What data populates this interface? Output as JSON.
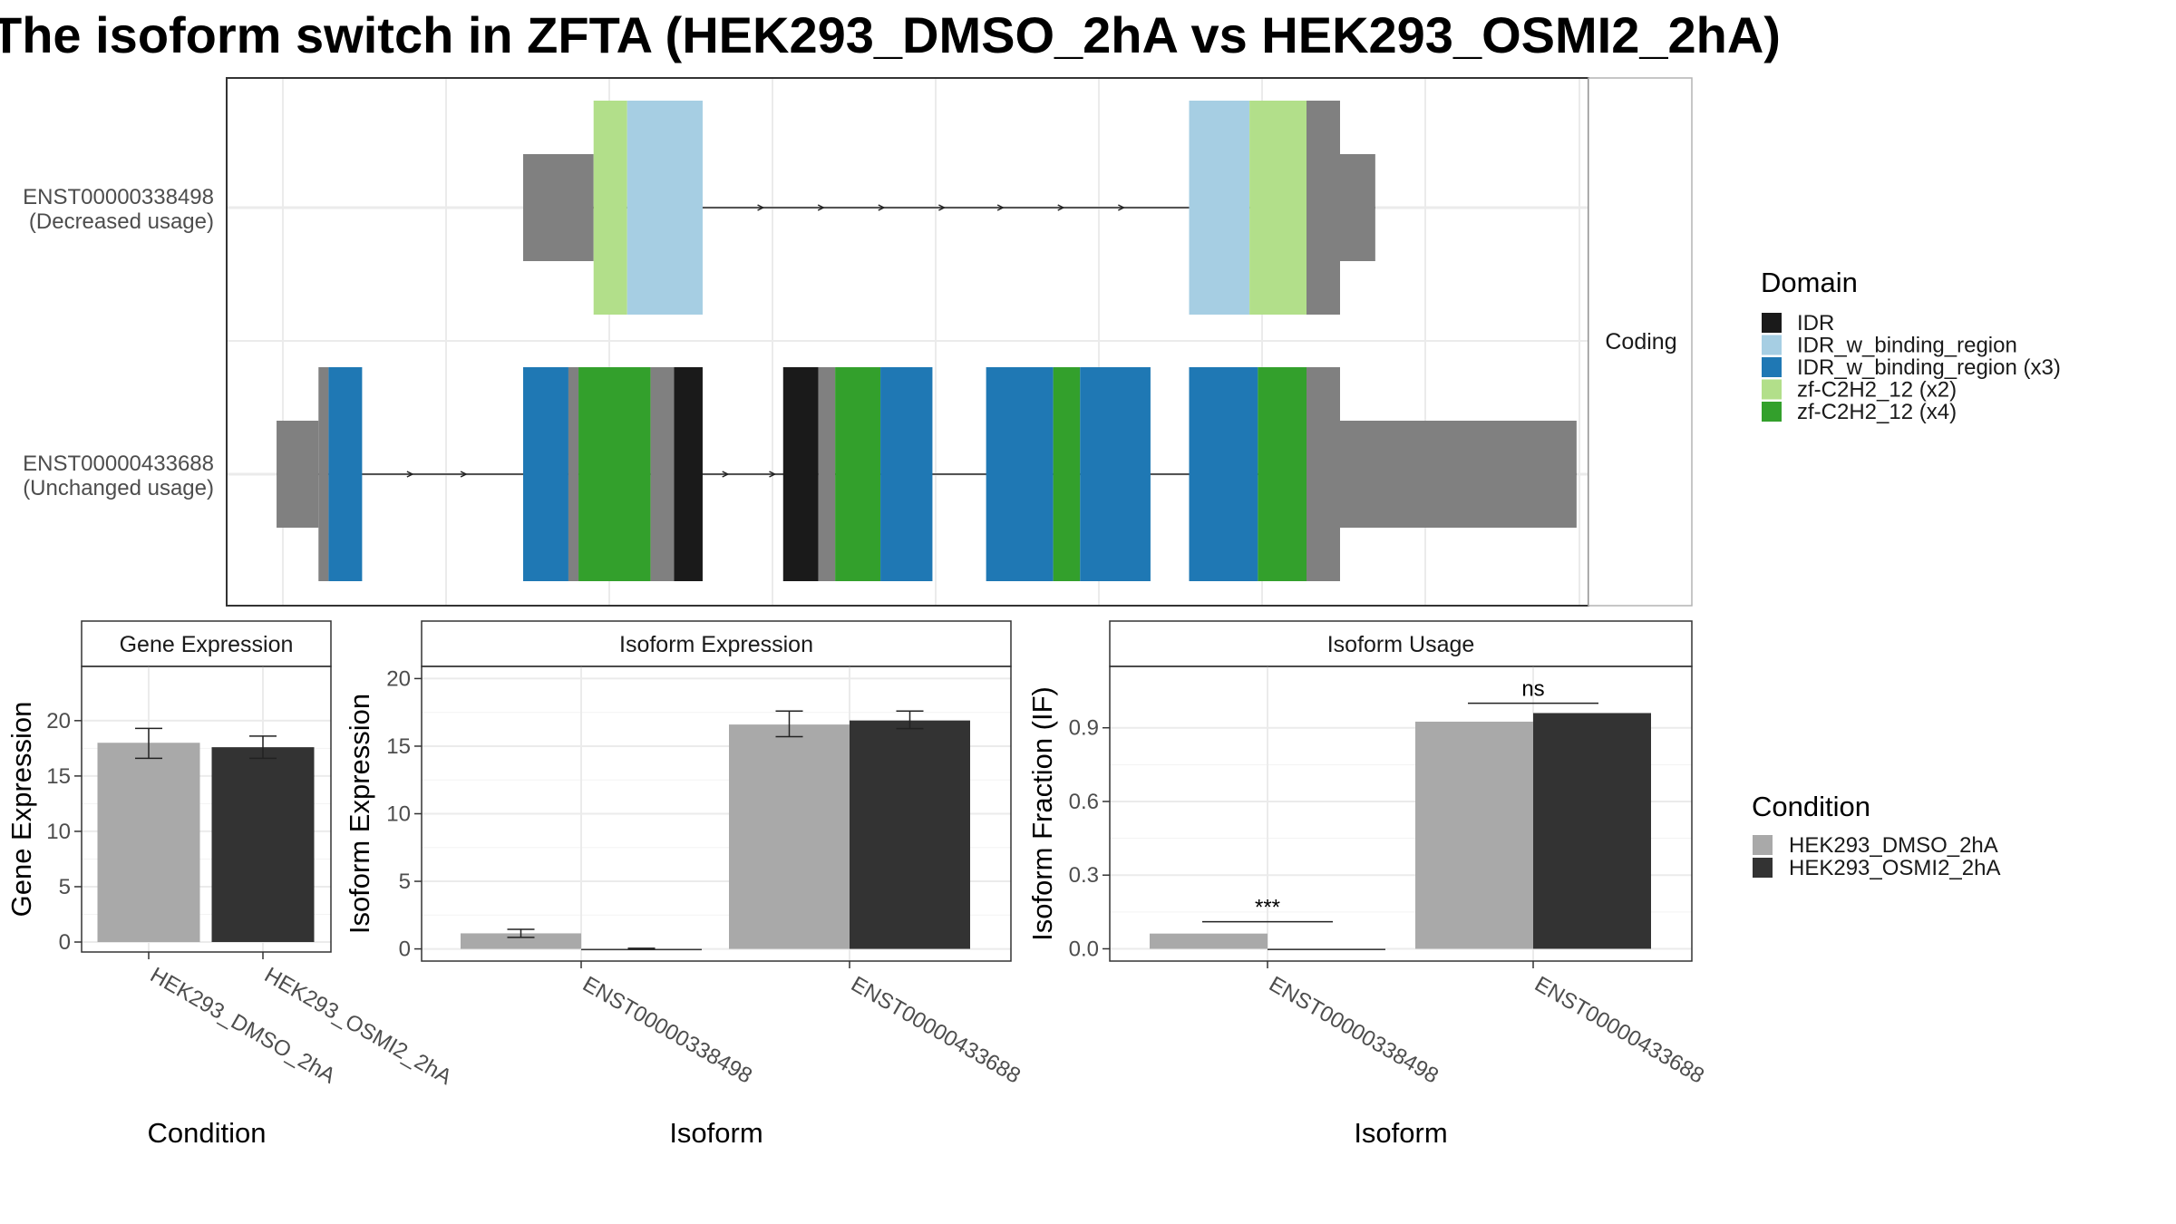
{
  "title": "The isoform switch in ZFTA (HEK293_DMSO_2hA vs HEK293_OSMI2_2hA)",
  "colors": {
    "IDR": "#1a1a1a",
    "IDR_w_binding_region": "#a6cee3",
    "IDR_w_binding_region (x3)": "#1f78b4",
    "zf-C2H2_12 (x2)": "#b2df8a",
    "zf-C2H2_12 (x4)": "#33a02c",
    "non_domain": "#808080",
    "HEK293_DMSO_2hA": "#a9a9a9",
    "HEK293_OSMI2_2hA": "#333333"
  },
  "structure": {
    "strip_label": "Coding",
    "isoforms": [
      {
        "id": "ENST00000338498",
        "usage": "(Decreased usage)",
        "exons": [
          {
            "start": 0.0,
            "end": 4.2,
            "height": "utr",
            "segments": [
              {
                "from": 0.0,
                "to": 4.2,
                "domain": "non_domain"
              }
            ]
          },
          {
            "start": 4.2,
            "end": 10.7,
            "height": "cds",
            "segments": [
              {
                "from": 4.2,
                "to": 6.2,
                "domain": "zf-C2H2_12 (x2)"
              },
              {
                "from": 6.2,
                "to": 10.7,
                "domain": "IDR_w_binding_region"
              }
            ]
          },
          {
            "start": 39.7,
            "end": 48.7,
            "height": "cds",
            "segments": [
              {
                "from": 39.7,
                "to": 43.3,
                "domain": "IDR_w_binding_region"
              },
              {
                "from": 43.3,
                "to": 46.7,
                "domain": "zf-C2H2_12 (x2)"
              },
              {
                "from": 46.7,
                "to": 48.7,
                "domain": "non_domain"
              }
            ]
          },
          {
            "start": 48.7,
            "end": 50.8,
            "height": "utr",
            "segments": [
              {
                "from": 48.7,
                "to": 50.8,
                "domain": "non_domain"
              }
            ]
          }
        ],
        "intron_arrows": [
          14.3,
          17.9,
          21.5,
          25.1,
          28.6,
          32.2,
          35.8
        ]
      },
      {
        "id": "ENST00000433688",
        "usage": "(Unchanged usage)",
        "exons": [
          {
            "start": -14.7,
            "end": -12.2,
            "height": "utr",
            "segments": [
              {
                "from": -14.7,
                "to": -12.2,
                "domain": "non_domain"
              }
            ]
          },
          {
            "start": -12.2,
            "end": -9.6,
            "height": "cds",
            "segments": [
              {
                "from": -12.2,
                "to": -11.6,
                "domain": "non_domain"
              },
              {
                "from": -11.6,
                "to": -9.6,
                "domain": "IDR_w_binding_region (x3)"
              }
            ]
          },
          {
            "start": 0.0,
            "end": 10.7,
            "height": "cds",
            "segments": [
              {
                "from": 0.0,
                "to": 2.7,
                "domain": "IDR_w_binding_region (x3)"
              },
              {
                "from": 2.7,
                "to": 3.3,
                "domain": "non_domain"
              },
              {
                "from": 3.3,
                "to": 7.6,
                "domain": "zf-C2H2_12 (x4)"
              },
              {
                "from": 7.6,
                "to": 9.0,
                "domain": "non_domain"
              },
              {
                "from": 9.0,
                "to": 10.7,
                "domain": "IDR"
              }
            ]
          },
          {
            "start": 15.5,
            "end": 24.4,
            "height": "cds",
            "segments": [
              {
                "from": 15.5,
                "to": 17.6,
                "domain": "IDR"
              },
              {
                "from": 17.6,
                "to": 18.6,
                "domain": "non_domain"
              },
              {
                "from": 18.6,
                "to": 21.3,
                "domain": "zf-C2H2_12 (x4)"
              },
              {
                "from": 21.3,
                "to": 24.4,
                "domain": "IDR_w_binding_region (x3)"
              }
            ]
          },
          {
            "start": 27.6,
            "end": 37.4,
            "height": "cds",
            "segments": [
              {
                "from": 27.6,
                "to": 31.6,
                "domain": "IDR_w_binding_region (x3)"
              },
              {
                "from": 31.6,
                "to": 33.2,
                "domain": "zf-C2H2_12 (x4)"
              },
              {
                "from": 33.2,
                "to": 37.4,
                "domain": "IDR_w_binding_region (x3)"
              }
            ]
          },
          {
            "start": 39.7,
            "end": 48.7,
            "height": "cds",
            "segments": [
              {
                "from": 39.7,
                "to": 43.8,
                "domain": "IDR_w_binding_region (x3)"
              },
              {
                "from": 43.8,
                "to": 46.7,
                "domain": "zf-C2H2_12 (x4)"
              },
              {
                "from": 46.7,
                "to": 48.7,
                "domain": "non_domain"
              }
            ]
          },
          {
            "start": 48.7,
            "end": 62.8,
            "height": "utr",
            "segments": [
              {
                "from": 48.7,
                "to": 62.8,
                "domain": "non_domain"
              }
            ]
          }
        ],
        "intron_arrows": [
          -6.6,
          -3.4,
          12.2,
          15.0
        ]
      }
    ]
  },
  "domain_legend": {
    "title": "Domain",
    "items": [
      "IDR",
      "IDR_w_binding_region",
      "IDR_w_binding_region (x3)",
      "zf-C2H2_12 (x2)",
      "zf-C2H2_12 (x4)"
    ]
  },
  "condition_legend": {
    "title": "Condition",
    "items": [
      "HEK293_DMSO_2hA",
      "HEK293_OSMI2_2hA"
    ]
  },
  "chart_data": [
    {
      "type": "bar",
      "title": "Gene Expression",
      "xlabel": "Condition",
      "ylabel": "Gene Expression",
      "categories": [
        "HEK293_DMSO_2hA",
        "HEK293_OSMI2_2hA"
      ],
      "values": [
        18.0,
        17.6
      ],
      "error": [
        [
          16.6,
          19.3
        ],
        [
          16.6,
          18.6
        ]
      ],
      "ylim": [
        -0.9,
        24.9
      ],
      "yticks": [
        0,
        5,
        10,
        15,
        20
      ]
    },
    {
      "type": "bar",
      "title": "Isoform Expression",
      "xlabel": "Isoform",
      "ylabel": "Isoform Expression",
      "categories": [
        "ENST00000338498",
        "ENST00000433688"
      ],
      "series": [
        {
          "name": "HEK293_DMSO_2hA",
          "values": [
            1.15,
            16.6
          ],
          "error": [
            [
              0.85,
              1.45
            ],
            [
              15.7,
              17.6
            ]
          ]
        },
        {
          "name": "HEK293_OSMI2_2hA",
          "values": [
            0.0,
            16.9
          ],
          "error": [
            [
              0.0,
              0.05
            ],
            [
              16.3,
              17.6
            ]
          ]
        }
      ],
      "ylim": [
        -0.9,
        20.9
      ],
      "yticks": [
        0,
        5,
        10,
        15,
        20
      ]
    },
    {
      "type": "bar",
      "title": "Isoform Usage",
      "xlabel": "Isoform",
      "ylabel": "Isoform Fraction (IF)",
      "categories": [
        "ENST00000338498",
        "ENST00000433688"
      ],
      "series": [
        {
          "name": "HEK293_DMSO_2hA",
          "values": [
            0.062,
            0.925
          ]
        },
        {
          "name": "HEK293_OSMI2_2hA",
          "values": [
            0.0,
            0.96
          ]
        }
      ],
      "ylim": [
        -0.05,
        1.15
      ],
      "yticks": [
        "0.0",
        "0.3",
        "0.6",
        "0.9"
      ],
      "annotations": [
        {
          "category": "ENST00000338498",
          "text": "***",
          "y": 0.11
        },
        {
          "category": "ENST00000433688",
          "text": "ns",
          "y": 1.0
        }
      ]
    }
  ]
}
